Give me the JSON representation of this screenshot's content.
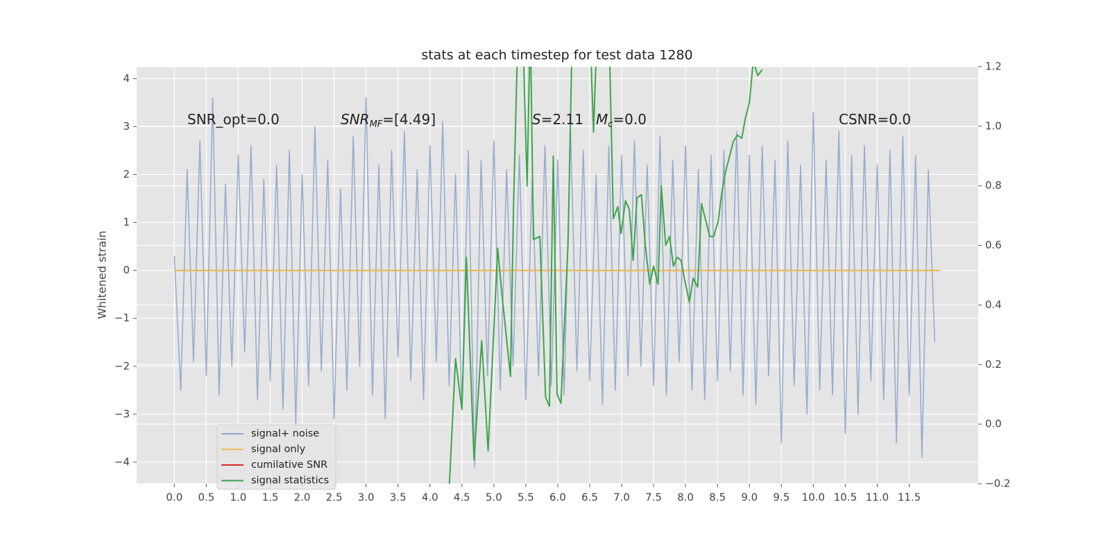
{
  "chart_data": {
    "type": "line",
    "title": "stats at each timestep for test data 1280",
    "y_label": "Whitened strain",
    "xlim": [
      -0.59,
      12.58
    ],
    "ylim": [
      -4.45,
      4.25
    ],
    "y2lim": [
      -0.2,
      1.2
    ],
    "grid": true,
    "legend": "lower left",
    "xticks": [
      {
        "value": 0,
        "label": "0.0"
      },
      {
        "value": 0.5,
        "label": "0.5"
      },
      {
        "value": 1,
        "label": "1.0"
      },
      {
        "value": 1.5,
        "label": "1.5"
      },
      {
        "value": 2,
        "label": "2.0"
      },
      {
        "value": 2.5,
        "label": "2.5"
      },
      {
        "value": 3,
        "label": "3.0"
      },
      {
        "value": 3.5,
        "label": "3.5"
      },
      {
        "value": 4,
        "label": "4.0"
      },
      {
        "value": 4.5,
        "label": "4.5"
      },
      {
        "value": 5,
        "label": "5.0"
      },
      {
        "value": 5.5,
        "label": "5.5"
      },
      {
        "value": 6,
        "label": "6.0"
      },
      {
        "value": 6.5,
        "label": "6.5"
      },
      {
        "value": 7,
        "label": "7.0"
      },
      {
        "value": 7.5,
        "label": "7.5"
      },
      {
        "value": 8,
        "label": "8.0"
      },
      {
        "value": 8.5,
        "label": "8.5"
      },
      {
        "value": 9,
        "label": "9.0"
      },
      {
        "value": 9.5,
        "label": "9.5"
      },
      {
        "value": 10,
        "label": "10.0"
      },
      {
        "value": 10.5,
        "label": "10.5"
      },
      {
        "value": 11,
        "label": "11.0"
      },
      {
        "value": 11.5,
        "label": "11.5"
      }
    ],
    "yticks": [
      {
        "value": -4,
        "label": "−4"
      },
      {
        "value": -3,
        "label": "−3"
      },
      {
        "value": -2,
        "label": "−2"
      },
      {
        "value": -1,
        "label": "−1"
      },
      0,
      1,
      2,
      3,
      4
    ],
    "y2ticks": [
      {
        "value": -0.2,
        "label": "−0.2"
      },
      {
        "value": 0,
        "label": "0.0"
      },
      {
        "value": 0.2,
        "label": "0.2"
      },
      {
        "value": 0.4,
        "label": "0.4"
      },
      {
        "value": 0.6,
        "label": "0.6"
      },
      {
        "value": 0.8,
        "label": "0.8"
      },
      {
        "value": 1.0,
        "label": "1.0"
      },
      {
        "value": 1.2,
        "label": "1.2"
      }
    ],
    "annotations": [
      {
        "text": "SNR_opt=0.0"
      },
      {
        "text": "SNR",
        "sub": "MF",
        "rest": "=[4.49]"
      },
      {
        "text": "S",
        "rest": "=2.11"
      },
      {
        "text": "M",
        "sub": "c",
        "rest": "=0.0"
      },
      {
        "text": "CSNR=0.0"
      }
    ],
    "series": [
      {
        "name": "signal+ noise",
        "color": "#8fa5cc",
        "x": [
          0,
          0.1,
          0.2,
          0.3,
          0.4,
          0.5,
          0.6,
          0.7,
          0.8,
          0.9,
          1,
          1.1,
          1.2,
          1.3,
          1.4,
          1.5,
          1.6,
          1.7,
          1.8,
          1.9,
          2,
          2.1,
          2.2,
          2.3,
          2.4,
          2.5,
          2.6,
          2.7,
          2.8,
          2.9,
          3,
          3.1,
          3.2,
          3.3,
          3.4,
          3.5,
          3.6,
          3.7,
          3.8,
          3.9,
          4,
          4.1,
          4.2,
          4.3,
          4.4,
          4.5,
          4.6,
          4.7,
          4.8,
          4.9,
          5,
          5.1,
          5.2,
          5.3,
          5.4,
          5.5,
          5.6,
          5.7,
          5.8,
          5.9,
          6,
          6.1,
          6.2,
          6.3,
          6.4,
          6.5,
          6.6,
          6.7,
          6.8,
          6.9,
          7,
          7.1,
          7.2,
          7.3,
          7.4,
          7.5,
          7.6,
          7.7,
          7.8,
          7.9,
          8,
          8.1,
          8.2,
          8.3,
          8.4,
          8.5,
          8.6,
          8.7,
          8.8,
          8.9,
          9,
          9.1,
          9.2,
          9.3,
          9.4,
          9.5,
          9.6,
          9.7,
          9.8,
          9.9,
          10,
          10.1,
          10.2,
          10.3,
          10.4,
          10.5,
          10.6,
          10.7,
          10.8,
          10.9,
          11,
          11.1,
          11.2,
          11.3,
          11.4,
          11.5,
          11.6,
          11.7,
          11.8,
          11.9
        ],
        "values": [
          0.3,
          -2.5,
          2.1,
          -1.9,
          2.7,
          -2.2,
          3.6,
          -2.6,
          1.8,
          -2.0,
          2.4,
          -1.7,
          2.6,
          -2.7,
          1.9,
          -2.3,
          2.2,
          -2.9,
          2.5,
          -3.2,
          2.0,
          -2.4,
          3.0,
          -2.1,
          2.3,
          -3.1,
          1.7,
          -2.5,
          2.8,
          -2.0,
          3.6,
          -2.6,
          2.2,
          -3.1,
          2.5,
          -1.8,
          2.9,
          -2.3,
          2.1,
          -2.7,
          2.6,
          -1.9,
          3.1,
          -2.4,
          2.0,
          -2.9,
          2.5,
          -4.1,
          2.3,
          -2.2,
          2.7,
          -2.5,
          2.1,
          -2.0,
          2.4,
          -2.7,
          1.9,
          -2.2,
          2.6,
          -2.4,
          2.3,
          -2.6,
          2.9,
          -2.1,
          2.5,
          -2.3,
          2.0,
          -2.8,
          2.6,
          -2.5,
          2.4,
          -2.2,
          2.7,
          -2.0,
          2.2,
          -2.4,
          2.8,
          -2.6,
          2.3,
          -1.9,
          2.6,
          -2.5,
          2.1,
          -2.7,
          2.4,
          -2.3,
          2.5,
          -2.1,
          2.9,
          -2.6,
          2.4,
          -2.8,
          2.6,
          -2.2,
          2.3,
          -3.6,
          2.7,
          -2.4,
          2.2,
          -3.0,
          3.3,
          -2.5,
          2.3,
          -2.6,
          2.9,
          -3.4,
          2.4,
          -3.0,
          2.6,
          -2.3,
          2.2,
          -2.7,
          2.5,
          -3.6,
          2.8,
          -2.6,
          2.4,
          -3.9,
          2.1,
          -1.5
        ]
      },
      {
        "name": "signal only",
        "color": "#f0b54a",
        "x": [
          0,
          11.98
        ],
        "values": [
          0,
          0
        ]
      },
      {
        "name": "cumilative SNR",
        "color": "#d62728",
        "x": [],
        "values": []
      },
      {
        "name": "signal statistics",
        "color": "#3fa34d",
        "axis": "y2",
        "x": [
          4.19,
          4.3,
          4.4,
          4.5,
          4.57,
          4.69,
          4.81,
          4.91,
          5.06,
          5.12,
          5.26,
          5.31,
          5.38,
          5.45,
          5.52,
          5.57,
          5.62,
          5.72,
          5.81,
          5.87,
          5.93,
          5.99,
          6.05,
          6.16,
          6.23,
          6.5,
          6.56,
          6.62,
          6.8,
          6.87,
          6.94,
          6.99,
          7.06,
          7.12,
          7.18,
          7.24,
          7.31,
          7.37,
          7.44,
          7.5,
          7.57,
          7.62,
          7.69,
          7.75,
          7.81,
          7.87,
          7.93,
          7.99,
          8.06,
          8.12,
          8.19,
          8.25,
          8.32,
          8.38,
          8.44,
          8.51,
          8.57,
          8.63,
          8.69,
          8.75,
          8.81,
          8.88,
          8.94,
          9.0,
          9.06,
          9.13,
          9.2
        ],
        "values": [
          -0.2,
          -0.22,
          0.22,
          0.05,
          0.56,
          -0.12,
          0.28,
          -0.09,
          0.59,
          0.45,
          0.16,
          0.75,
          1.35,
          1.35,
          0.8,
          1.35,
          0.62,
          0.63,
          0.09,
          0.06,
          0.9,
          0.1,
          0.07,
          0.6,
          1.35,
          1.35,
          0.98,
          1.35,
          1.35,
          0.69,
          0.73,
          0.64,
          0.75,
          0.72,
          0.55,
          0.76,
          0.77,
          0.6,
          0.47,
          0.53,
          0.47,
          0.8,
          0.6,
          0.63,
          0.53,
          0.56,
          0.55,
          0.48,
          0.41,
          0.49,
          0.46,
          0.74,
          0.68,
          0.63,
          0.63,
          0.68,
          0.78,
          0.85,
          0.9,
          0.95,
          0.97,
          0.96,
          1.03,
          1.08,
          1.22,
          1.17,
          1.19
        ]
      }
    ]
  }
}
